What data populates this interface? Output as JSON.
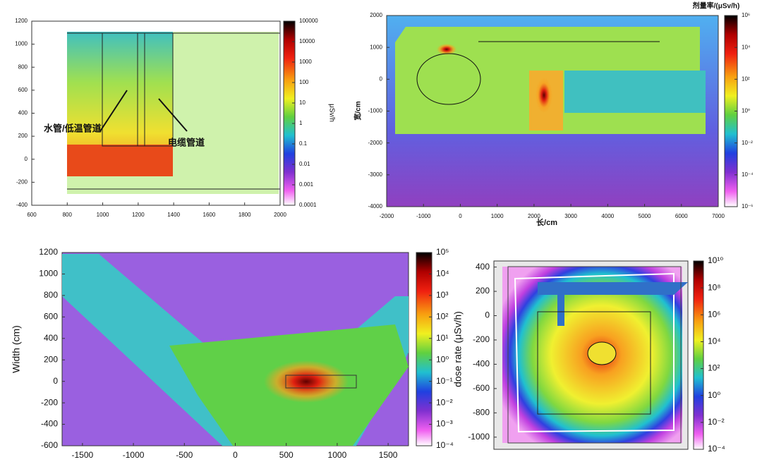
{
  "chart_data": [
    {
      "type": "heatmap",
      "colorbar_label": "μSv/h",
      "annotations": [
        "水管/低温管道",
        "电缆管道"
      ],
      "xlim": [
        600,
        2000
      ],
      "xticks": [
        600,
        800,
        1000,
        1200,
        1400,
        1600,
        1800,
        2000
      ],
      "ylim": [
        -400,
        1200
      ],
      "yticks": [
        -400,
        -200,
        0,
        200,
        400,
        600,
        800,
        1000,
        1200
      ],
      "clog": true,
      "clim": [
        0.0001,
        100000
      ],
      "cticks": [
        100000,
        10000,
        1000,
        100,
        10,
        1,
        0.1,
        0.01,
        0.001,
        0.0001
      ]
    },
    {
      "type": "heatmap",
      "colorbar_label": "剂量率/(μSv/h)",
      "x_label": "长/cm",
      "y_label": "宽/cm",
      "xlim": [
        -2000,
        7000
      ],
      "xticks": [
        -2000,
        -1000,
        0,
        1000,
        2000,
        3000,
        4000,
        5000,
        6000,
        7000
      ],
      "ylim": [
        -4000,
        2000
      ],
      "yticks": [
        -4000,
        -3000,
        -2000,
        -1000,
        0,
        1000,
        2000
      ],
      "clog": true,
      "clim": [
        1e-06,
        1000000
      ],
      "cticks": [
        {
          "value": 1000000,
          "label": "10⁶"
        },
        {
          "value": 10000,
          "label": "10⁴"
        },
        {
          "value": 100,
          "label": "10²"
        },
        {
          "value": 1,
          "label": "10⁰"
        },
        {
          "value": 0.01,
          "label": "10⁻²"
        },
        {
          "value": 0.0001,
          "label": "10⁻⁴"
        },
        {
          "value": 1e-06,
          "label": "10⁻⁶"
        }
      ]
    },
    {
      "type": "heatmap",
      "colorbar_label": "dose rate (μSv/h)",
      "y_label": "Width (cm)",
      "xlim": [
        -1700,
        1700
      ],
      "xticks": [
        -1500,
        -1000,
        -500,
        0,
        500,
        1000,
        1500
      ],
      "ylim": [
        -600,
        1200
      ],
      "yticks": [
        -600,
        -400,
        -200,
        0,
        200,
        400,
        600,
        800,
        1000,
        1200
      ],
      "clog": true,
      "clim": [
        0.0001,
        100000
      ],
      "cticks": [
        {
          "value": 100000,
          "label": "10⁵"
        },
        {
          "value": 10000,
          "label": "10⁴"
        },
        {
          "value": 1000,
          "label": "10³"
        },
        {
          "value": 100,
          "label": "10²"
        },
        {
          "value": 10,
          "label": "10¹"
        },
        {
          "value": 1,
          "label": "10⁰"
        },
        {
          "value": 0.1,
          "label": "10⁻¹"
        },
        {
          "value": 0.01,
          "label": "10⁻²"
        },
        {
          "value": 0.001,
          "label": "10⁻³"
        },
        {
          "value": 0.0001,
          "label": "10⁻⁴"
        }
      ]
    },
    {
      "type": "heatmap",
      "ylim": [
        -1100,
        450
      ],
      "yticks": [
        400,
        200,
        0,
        -200,
        -400,
        -600,
        -800,
        -1000
      ],
      "clog": true,
      "clim": [
        0.0001,
        10000000000
      ],
      "cticks": [
        {
          "value": 10000000000,
          "label": "10¹⁰"
        },
        {
          "value": 100000000,
          "label": "10⁸"
        },
        {
          "value": 1000000,
          "label": "10⁶"
        },
        {
          "value": 10000,
          "label": "10⁴"
        },
        {
          "value": 100,
          "label": "10²"
        },
        {
          "value": 1,
          "label": "10⁰"
        },
        {
          "value": 0.01,
          "label": "10⁻²"
        },
        {
          "value": 0.0001,
          "label": "10⁻⁴"
        }
      ]
    }
  ]
}
